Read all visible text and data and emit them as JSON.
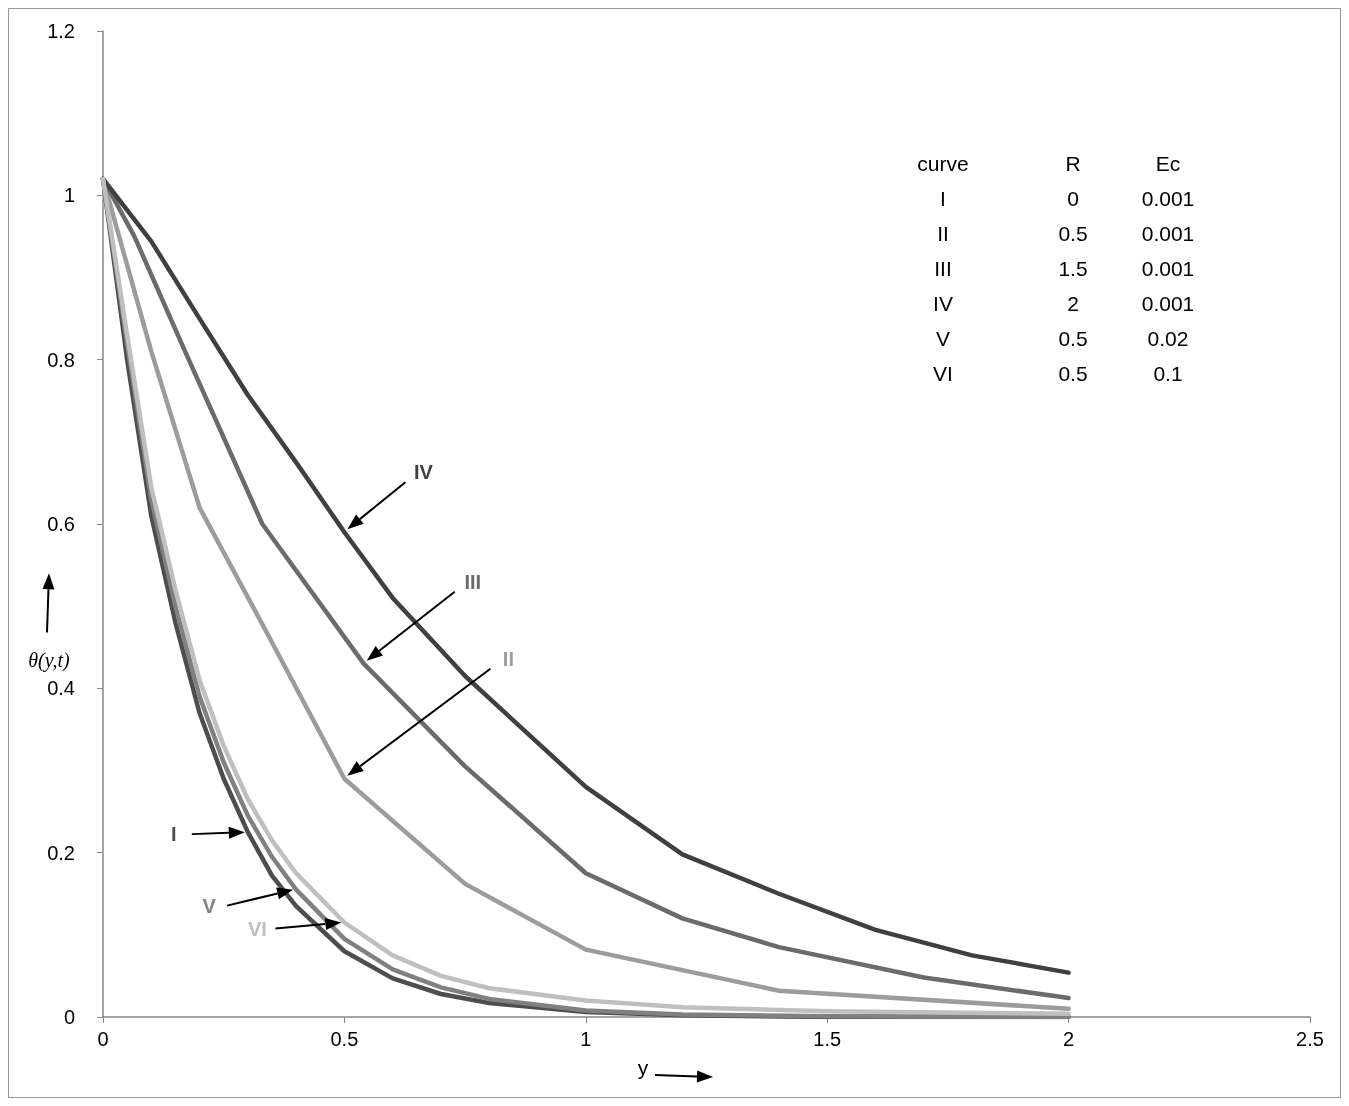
{
  "chart_data": {
    "type": "line",
    "xlabel": "y",
    "ylabel": "θ(y,t)",
    "xlim": [
      0,
      2.5
    ],
    "xticks": [
      0,
      0.5,
      1,
      1.5,
      2,
      2.5
    ],
    "ylim": [
      0,
      1.2
    ],
    "yticks": [
      0,
      0.2,
      0.4,
      0.6,
      0.8,
      1,
      1.2
    ],
    "grid": false,
    "legend": false,
    "marker": "none",
    "line_style": "solid",
    "annotations": [
      "curve",
      "R",
      "Ec",
      "I",
      "0",
      "0.001",
      "II",
      "0.5",
      "0.001",
      "III",
      "1.5",
      "0.001",
      "IV",
      "2",
      "0.001",
      "V",
      "0.5",
      "0.02",
      "VI",
      "0.5",
      "0.1"
    ],
    "series": [
      {
        "name": "I",
        "color": "#4d4d4d",
        "x": [
          0,
          0.05,
          0.1,
          0.15,
          0.2,
          0.25,
          0.3,
          0.35,
          0.4,
          0.5,
          0.6,
          0.7,
          0.8,
          1,
          1.2,
          1.5,
          2
        ],
        "values": [
          1.02,
          0.8,
          0.61,
          0.48,
          0.37,
          0.29,
          0.225,
          0.172,
          0.135,
          0.08,
          0.047,
          0.028,
          0.017,
          0.006,
          0.002,
          0,
          0
        ]
      },
      {
        "name": "II",
        "color": "#9c9c9c",
        "x": [
          0,
          0.1,
          0.2,
          0.34,
          0.5,
          0.75,
          1,
          1.4,
          2
        ],
        "values": [
          1.02,
          0.81,
          0.62,
          0.467,
          0.29,
          0.162,
          0.082,
          0.032,
          0.01
        ]
      },
      {
        "name": "III",
        "color": "#6b6b6b",
        "x": [
          0,
          0.065,
          0.17,
          0.33,
          0.54,
          0.75,
          1,
          1.2,
          1.4,
          1.7,
          2
        ],
        "values": [
          1.02,
          0.95,
          0.81,
          0.6,
          0.43,
          0.305,
          0.175,
          0.12,
          0.085,
          0.048,
          0.023
        ]
      },
      {
        "name": "IV",
        "color": "#404040",
        "x": [
          0,
          0.1,
          0.2,
          0.3,
          0.4,
          0.5,
          0.6,
          0.75,
          1,
          1.2,
          1.4,
          1.6,
          1.8,
          2
        ],
        "values": [
          1.02,
          0.944,
          0.85,
          0.757,
          0.675,
          0.59,
          0.51,
          0.415,
          0.28,
          0.198,
          0.15,
          0.106,
          0.075,
          0.054
        ]
      },
      {
        "name": "V",
        "color": "#808080",
        "x": [
          0,
          0.05,
          0.1,
          0.15,
          0.2,
          0.25,
          0.3,
          0.35,
          0.4,
          0.5,
          0.6,
          0.7,
          0.8,
          1,
          1.2,
          1.5,
          2
        ],
        "values": [
          1.02,
          0.82,
          0.63,
          0.5,
          0.39,
          0.31,
          0.245,
          0.195,
          0.155,
          0.095,
          0.058,
          0.036,
          0.022,
          0.008,
          0.003,
          0.001,
          0
        ]
      },
      {
        "name": "VI",
        "color": "#bfbfbf",
        "x": [
          0,
          0.05,
          0.1,
          0.15,
          0.2,
          0.25,
          0.3,
          0.35,
          0.4,
          0.5,
          0.6,
          0.7,
          0.8,
          1,
          1.2,
          1.5,
          2
        ],
        "values": [
          1.02,
          0.83,
          0.645,
          0.52,
          0.41,
          0.33,
          0.265,
          0.215,
          0.175,
          0.115,
          0.075,
          0.05,
          0.035,
          0.02,
          0.012,
          0.007,
          0.004
        ]
      }
    ]
  }
}
